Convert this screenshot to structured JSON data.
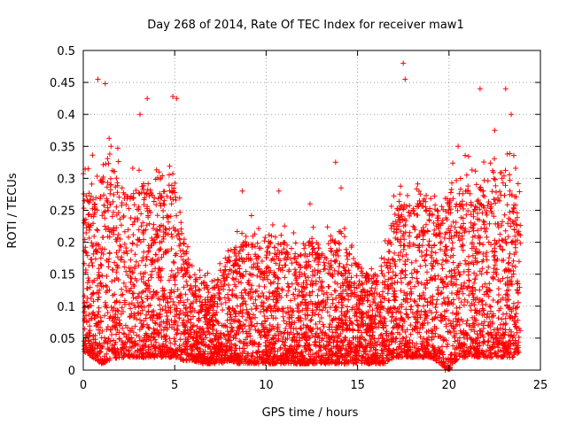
{
  "chart_data": {
    "type": "scatter",
    "title": "Day 268 of 2014, Rate Of TEC Index for receiver maw1",
    "xlabel": "GPS time / hours",
    "ylabel": "ROTI / TECUs",
    "xlim": [
      0,
      25
    ],
    "ylim": [
      0,
      0.5
    ],
    "x_ticks": [
      0,
      5,
      10,
      15,
      20,
      25
    ],
    "y_ticks": [
      0,
      0.05,
      0.1,
      0.15,
      0.2,
      0.25,
      0.3,
      0.35,
      0.4,
      0.45,
      0.5
    ],
    "grid": true,
    "marker": "+",
    "marker_color": "#ff0000",
    "series": [
      {
        "name": "maw1",
        "x_range": [
          0,
          23.9
        ],
        "envelope": {
          "hours": [
            0,
            0.5,
            1,
            1.5,
            2,
            2.5,
            3,
            3.5,
            4,
            4.5,
            5,
            5.5,
            6,
            6.5,
            7,
            7.5,
            8,
            8.5,
            9,
            9.5,
            10,
            10.5,
            11,
            11.5,
            12,
            12.5,
            13,
            13.5,
            14,
            14.5,
            15,
            15.5,
            16,
            16.5,
            17,
            17.5,
            18,
            18.5,
            19,
            19.5,
            20,
            20.5,
            21,
            21.5,
            22,
            22.5,
            23,
            23.5,
            23.9
          ],
          "typical_max": [
            0.28,
            0.3,
            0.32,
            0.33,
            0.3,
            0.3,
            0.28,
            0.3,
            0.28,
            0.27,
            0.3,
            0.2,
            0.15,
            0.14,
            0.14,
            0.15,
            0.18,
            0.2,
            0.22,
            0.2,
            0.2,
            0.2,
            0.2,
            0.19,
            0.2,
            0.2,
            0.2,
            0.21,
            0.2,
            0.2,
            0.17,
            0.15,
            0.15,
            0.18,
            0.25,
            0.27,
            0.26,
            0.28,
            0.27,
            0.25,
            0.29,
            0.3,
            0.3,
            0.28,
            0.3,
            0.3,
            0.32,
            0.3,
            0.26
          ],
          "typical_min": [
            0.03,
            0.02,
            0.01,
            0.015,
            0.02,
            0.02,
            0.02,
            0.02,
            0.02,
            0.02,
            0.02,
            0.015,
            0.015,
            0.01,
            0.01,
            0.01,
            0.015,
            0.01,
            0.01,
            0.01,
            0.01,
            0.01,
            0.01,
            0.01,
            0.01,
            0.01,
            0.01,
            0.01,
            0.01,
            0.01,
            0.01,
            0.01,
            0.01,
            0.01,
            0.02,
            0.02,
            0.02,
            0.02,
            0.02,
            0.01,
            0.0,
            0.02,
            0.02,
            0.02,
            0.02,
            0.02,
            0.02,
            0.02,
            0.03
          ]
        },
        "peaks": [
          {
            "x": 0.8,
            "y": 0.455
          },
          {
            "x": 1.2,
            "y": 0.448
          },
          {
            "x": 3.5,
            "y": 0.425
          },
          {
            "x": 4.9,
            "y": 0.428
          },
          {
            "x": 5.1,
            "y": 0.425
          },
          {
            "x": 3.1,
            "y": 0.4
          },
          {
            "x": 13.8,
            "y": 0.325
          },
          {
            "x": 17.5,
            "y": 0.48
          },
          {
            "x": 17.6,
            "y": 0.455
          },
          {
            "x": 21.7,
            "y": 0.44
          },
          {
            "x": 23.1,
            "y": 0.44
          },
          {
            "x": 23.4,
            "y": 0.4
          },
          {
            "x": 22.5,
            "y": 0.375
          },
          {
            "x": 20.5,
            "y": 0.35
          },
          {
            "x": 8.7,
            "y": 0.28
          },
          {
            "x": 10.7,
            "y": 0.28
          },
          {
            "x": 14.1,
            "y": 0.285
          },
          {
            "x": 12.4,
            "y": 0.26
          },
          {
            "x": 19.8,
            "y": 0.0
          }
        ]
      }
    ]
  }
}
